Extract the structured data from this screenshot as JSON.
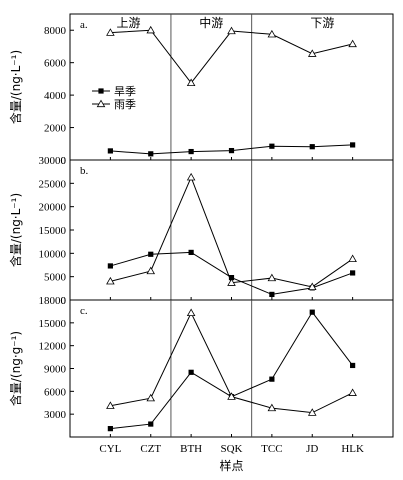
{
  "chart_data": [
    {
      "type": "line",
      "panel_label": "a.",
      "ylabel": "含量/(ng·L⁻¹)",
      "ylim": [
        0,
        9000
      ],
      "yticks": [
        0,
        2000,
        4000,
        6000,
        8000
      ],
      "categories": [
        "CYL",
        "CZT",
        "BTH",
        "SQK",
        "TCC",
        "JD",
        "HLK"
      ],
      "series": [
        {
          "name": "旱季",
          "marker": "square",
          "values": [
            560,
            380,
            520,
            580,
            850,
            820,
            930
          ]
        },
        {
          "name": "雨季",
          "marker": "triangle",
          "values": [
            7850,
            8000,
            4750,
            7950,
            7750,
            6550,
            7150
          ]
        }
      ],
      "legend": "upper-left",
      "region_labels": [
        "上游",
        "中游",
        "下游"
      ]
    },
    {
      "type": "line",
      "panel_label": "b.",
      "ylabel": "含量/(ng·L⁻¹)",
      "ylim": [
        0,
        30000
      ],
      "yticks": [
        0,
        5000,
        10000,
        15000,
        20000,
        25000,
        30000
      ],
      "categories": [
        "CYL",
        "CZT",
        "BTH",
        "SQK",
        "TCC",
        "JD",
        "HLK"
      ],
      "series": [
        {
          "name": "旱季",
          "marker": "square",
          "values": [
            7300,
            9800,
            10200,
            4800,
            1200,
            2600,
            5800
          ]
        },
        {
          "name": "雨季",
          "marker": "triangle",
          "values": [
            4000,
            6200,
            26300,
            3700,
            4700,
            2800,
            8800
          ]
        }
      ]
    },
    {
      "type": "line",
      "panel_label": "c.",
      "ylabel": "含量/(ng·g⁻¹)",
      "ylim": [
        0,
        18000
      ],
      "yticks": [
        3000,
        6000,
        9000,
        12000,
        15000,
        18000
      ],
      "categories": [
        "CYL",
        "CZT",
        "BTH",
        "SQK",
        "TCC",
        "JD",
        "HLK"
      ],
      "series": [
        {
          "name": "旱季",
          "marker": "square",
          "values": [
            1100,
            1700,
            8500,
            5300,
            7600,
            16400,
            9400
          ]
        },
        {
          "name": "雨季",
          "marker": "triangle",
          "values": [
            4100,
            5100,
            16300,
            5300,
            3800,
            3200,
            5800
          ]
        }
      ],
      "xlabel": "样点"
    }
  ]
}
